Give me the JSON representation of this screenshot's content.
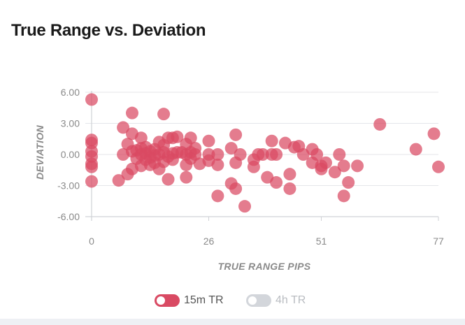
{
  "colors": {
    "series_primary": "#d94a63",
    "series_inactive": "#d3d6db",
    "text_inactive": "#b9bcc1",
    "title": "#1a1a1a"
  },
  "chart_data": {
    "type": "scatter",
    "title": "True Range vs. Deviation",
    "xlabel": "TRUE RANGE PIPS",
    "ylabel": "DEVIATION",
    "xlim": [
      0,
      77
    ],
    "ylim": [
      -6,
      6
    ],
    "x_ticks": [
      "0",
      "26",
      "51",
      "77"
    ],
    "y_ticks": [
      "6.00",
      "3.00",
      "0.00",
      "-3.00",
      "-6.00"
    ],
    "legend": [
      {
        "name": "15m TR",
        "active": true
      },
      {
        "name": "4h TR",
        "active": false
      }
    ],
    "series": [
      {
        "name": "15m TR",
        "points": [
          [
            0,
            5.3
          ],
          [
            0,
            1.4
          ],
          [
            0,
            1.1
          ],
          [
            0,
            0.3
          ],
          [
            0,
            -0.2
          ],
          [
            0,
            -0.9
          ],
          [
            0,
            -1.2
          ],
          [
            0,
            -2.6
          ],
          [
            6,
            -2.5
          ],
          [
            7,
            2.6
          ],
          [
            7,
            0.0
          ],
          [
            8,
            1.0
          ],
          [
            8,
            -1.9
          ],
          [
            9,
            4.0
          ],
          [
            9,
            2.0
          ],
          [
            9,
            0.3
          ],
          [
            9,
            -1.4
          ],
          [
            10,
            0.4
          ],
          [
            10,
            -0.4
          ],
          [
            11,
            1.6
          ],
          [
            11,
            0.6
          ],
          [
            11,
            0.0
          ],
          [
            11,
            -1.1
          ],
          [
            12,
            0.7
          ],
          [
            12,
            0.1
          ],
          [
            12,
            -0.5
          ],
          [
            13,
            0.3
          ],
          [
            13,
            -0.3
          ],
          [
            13,
            -1.0
          ],
          [
            14,
            0.5
          ],
          [
            14,
            -0.1
          ],
          [
            14,
            -0.8
          ],
          [
            15,
            1.2
          ],
          [
            15,
            0.0
          ],
          [
            15,
            -1.4
          ],
          [
            16,
            3.9
          ],
          [
            16,
            0.9
          ],
          [
            16,
            0.2
          ],
          [
            16,
            -0.7
          ],
          [
            17,
            1.6
          ],
          [
            17,
            -0.2
          ],
          [
            17,
            -2.4
          ],
          [
            18,
            1.6
          ],
          [
            18,
            0.1
          ],
          [
            18,
            -0.5
          ],
          [
            19,
            1.7
          ],
          [
            19,
            0.2
          ],
          [
            20,
            0.2
          ],
          [
            21,
            1.0
          ],
          [
            21,
            0.0
          ],
          [
            21,
            -1.0
          ],
          [
            21,
            -2.2
          ],
          [
            22,
            1.6
          ],
          [
            22,
            0.2
          ],
          [
            22,
            -0.4
          ],
          [
            23,
            0.6
          ],
          [
            23,
            0.0
          ],
          [
            24,
            -0.9
          ],
          [
            26,
            1.3
          ],
          [
            26,
            0.0
          ],
          [
            26,
            -0.6
          ],
          [
            28,
            0.0
          ],
          [
            28,
            -1.0
          ],
          [
            28,
            -4.0
          ],
          [
            31,
            0.6
          ],
          [
            31,
            -2.8
          ],
          [
            32,
            1.9
          ],
          [
            32,
            -0.8
          ],
          [
            32,
            -3.3
          ],
          [
            33,
            0.0
          ],
          [
            34,
            -5.0
          ],
          [
            36,
            -0.5
          ],
          [
            36,
            -1.2
          ],
          [
            37,
            0.0
          ],
          [
            38,
            0.0
          ],
          [
            39,
            -2.2
          ],
          [
            40,
            1.3
          ],
          [
            40,
            0.0
          ],
          [
            41,
            0.0
          ],
          [
            41,
            -2.7
          ],
          [
            43,
            1.1
          ],
          [
            44,
            -1.9
          ],
          [
            44,
            -3.3
          ],
          [
            45,
            0.7
          ],
          [
            46,
            0.8
          ],
          [
            47,
            0.0
          ],
          [
            49,
            0.5
          ],
          [
            49,
            -0.8
          ],
          [
            50,
            0.0
          ],
          [
            51,
            -1.1
          ],
          [
            51,
            -1.4
          ],
          [
            52,
            -0.8
          ],
          [
            54,
            -1.7
          ],
          [
            55,
            0.0
          ],
          [
            56,
            -1.1
          ],
          [
            56,
            -4.0
          ],
          [
            57,
            -2.7
          ],
          [
            59,
            -1.1
          ],
          [
            64,
            2.9
          ],
          [
            72,
            0.5
          ],
          [
            76,
            2.0
          ],
          [
            77,
            -1.2
          ]
        ]
      }
    ]
  }
}
